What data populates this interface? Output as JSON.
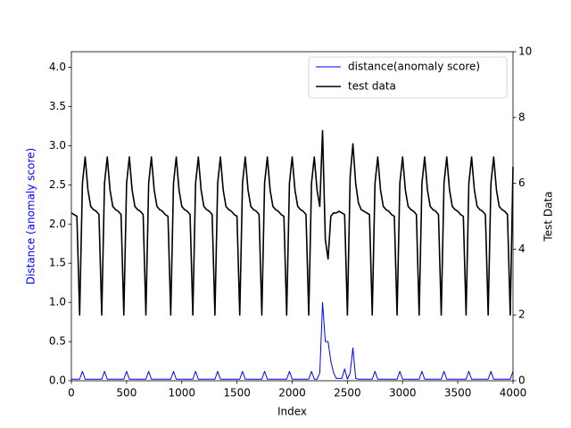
{
  "chart_data": {
    "type": "line",
    "xlabel": "Index",
    "ylabel": "Distance (anomaly score)",
    "y2label": "Test Data",
    "xlim": [
      0,
      4000
    ],
    "xticks": [
      0,
      500,
      1000,
      1500,
      2000,
      2500,
      3000,
      3500,
      4000
    ],
    "ylim": [
      0,
      4.2
    ],
    "yticks": [
      {
        "value": 0,
        "label": "0.0"
      },
      0.5,
      {
        "value": 1,
        "label": "1.0"
      },
      1.5,
      {
        "value": 2,
        "label": "2.0"
      },
      2.5,
      {
        "value": 3,
        "label": "3.0"
      },
      3.5,
      {
        "value": 4,
        "label": "4.0"
      }
    ],
    "y2lim": [
      0,
      10
    ],
    "y2ticks": [
      0,
      2,
      4,
      6,
      8,
      10
    ],
    "legend": "upper right",
    "x": [
      0,
      25,
      50,
      75,
      100,
      125,
      150,
      175,
      200,
      225,
      250,
      275,
      300,
      325,
      350,
      375,
      400,
      425,
      450,
      475,
      500,
      525,
      550,
      575,
      600,
      625,
      650,
      675,
      700,
      725,
      750,
      775,
      800,
      825,
      850,
      875,
      900,
      925,
      950,
      975,
      1000,
      1025,
      1050,
      1075,
      1100,
      1125,
      1150,
      1175,
      1200,
      1225,
      1250,
      1275,
      1300,
      1325,
      1350,
      1375,
      1400,
      1425,
      1450,
      1475,
      1500,
      1525,
      1550,
      1575,
      1600,
      1625,
      1650,
      1675,
      1700,
      1725,
      1750,
      1775,
      1800,
      1825,
      1850,
      1875,
      1900,
      1925,
      1950,
      1975,
      2000,
      2025,
      2050,
      2075,
      2100,
      2125,
      2150,
      2175,
      2200,
      2225,
      2250,
      2275,
      2300,
      2325,
      2350,
      2375,
      2400,
      2425,
      2450,
      2475,
      2500,
      2525,
      2550,
      2575,
      2600,
      2625,
      2650,
      2675,
      2700,
      2725,
      2750,
      2775,
      2800,
      2825,
      2850,
      2875,
      2900,
      2925,
      2950,
      2975,
      3000,
      3025,
      3050,
      3075,
      3100,
      3125,
      3150,
      3175,
      3200,
      3225,
      3250,
      3275,
      3300,
      3325,
      3350,
      3375,
      3400,
      3425,
      3450,
      3475,
      3500,
      3525,
      3550,
      3575,
      3600,
      3625,
      3650,
      3675,
      3700,
      3725,
      3750,
      3775,
      3800,
      3825,
      3850,
      3875,
      3900,
      3925,
      3950,
      3975,
      4000
    ],
    "series": [
      {
        "name": "distance(anomaly score)",
        "color": "#0000ff",
        "axis": "y",
        "width": 1,
        "values": [
          0.02,
          0.02,
          0.02,
          0.02,
          0.12,
          0.02,
          0.02,
          0.02,
          0.02,
          0.02,
          0.02,
          0.02,
          0.12,
          0.02,
          0.02,
          0.02,
          0.02,
          0.02,
          0.02,
          0.02,
          0.12,
          0.02,
          0.02,
          0.02,
          0.02,
          0.02,
          0.02,
          0.02,
          0.12,
          0.02,
          0.02,
          0.02,
          0.02,
          0.02,
          0.02,
          0.02,
          0.02,
          0.12,
          0.02,
          0.02,
          0.02,
          0.02,
          0.02,
          0.02,
          0.02,
          0.12,
          0.02,
          0.02,
          0.02,
          0.02,
          0.02,
          0.02,
          0.02,
          0.12,
          0.02,
          0.02,
          0.02,
          0.02,
          0.02,
          0.02,
          0.02,
          0.02,
          0.12,
          0.02,
          0.02,
          0.02,
          0.02,
          0.02,
          0.02,
          0.02,
          0.12,
          0.02,
          0.02,
          0.02,
          0.02,
          0.02,
          0.02,
          0.02,
          0.02,
          0.12,
          0.02,
          0.02,
          0.02,
          0.02,
          0.02,
          0.02,
          0.02,
          0.12,
          0.02,
          0.02,
          0.1,
          1.0,
          0.5,
          0.5,
          0.25,
          0.1,
          0.03,
          0.03,
          0.03,
          0.15,
          0.02,
          0.1,
          0.42,
          0.03,
          0.02,
          0.02,
          0.02,
          0.02,
          0.02,
          0.02,
          0.12,
          0.02,
          0.02,
          0.02,
          0.02,
          0.02,
          0.02,
          0.02,
          0.02,
          0.12,
          0.02,
          0.02,
          0.02,
          0.02,
          0.02,
          0.02,
          0.02,
          0.12,
          0.02,
          0.02,
          0.02,
          0.02,
          0.02,
          0.02,
          0.02,
          0.12,
          0.02,
          0.02,
          0.02,
          0.02,
          0.02,
          0.02,
          0.02,
          0.02,
          0.12,
          0.02,
          0.02,
          0.02,
          0.02,
          0.02,
          0.02,
          0.02,
          0.12,
          0.02,
          0.02,
          0.02,
          0.02,
          0.02,
          0.02,
          0.02,
          0.12
        ]
      },
      {
        "name": "test data",
        "color": "#000000",
        "axis": "y2",
        "width": 1.6,
        "values": [
          5.1,
          5.05,
          5.0,
          2.0,
          6.0,
          6.8,
          5.8,
          5.3,
          5.2,
          5.15,
          5.05,
          2.0,
          6.0,
          6.8,
          5.8,
          5.3,
          5.2,
          5.15,
          5.05,
          2.0,
          6.0,
          6.8,
          5.8,
          5.3,
          5.2,
          5.15,
          5.05,
          2.0,
          6.0,
          6.8,
          5.8,
          5.3,
          5.2,
          5.15,
          5.05,
          5.0,
          2.0,
          6.0,
          6.8,
          5.8,
          5.3,
          5.2,
          5.15,
          5.05,
          2.0,
          6.0,
          6.8,
          5.8,
          5.3,
          5.2,
          5.15,
          5.05,
          2.0,
          6.0,
          6.8,
          5.8,
          5.3,
          5.2,
          5.15,
          5.05,
          5.0,
          2.0,
          6.0,
          6.8,
          5.8,
          5.3,
          5.2,
          5.15,
          5.05,
          2.0,
          6.0,
          6.8,
          5.8,
          5.3,
          5.2,
          5.15,
          5.05,
          5.0,
          2.0,
          6.0,
          6.8,
          5.8,
          5.3,
          5.2,
          5.15,
          5.05,
          2.0,
          6.0,
          6.8,
          5.8,
          5.3,
          7.6,
          4.3,
          3.7,
          5.0,
          5.1,
          5.1,
          5.15,
          5.1,
          5.05,
          2.0,
          6.2,
          7.2,
          6.0,
          5.4,
          5.2,
          5.15,
          5.1,
          5.05,
          2.0,
          6.0,
          6.8,
          5.8,
          5.3,
          5.2,
          5.15,
          5.05,
          5.0,
          2.0,
          6.0,
          6.8,
          5.8,
          5.3,
          5.2,
          5.15,
          5.05,
          2.0,
          6.0,
          6.8,
          5.8,
          5.3,
          5.2,
          5.15,
          5.05,
          2.0,
          6.0,
          6.8,
          5.8,
          5.3,
          5.2,
          5.15,
          5.05,
          5.0,
          2.0,
          6.0,
          6.8,
          5.8,
          5.3,
          5.2,
          5.15,
          5.05,
          2.0,
          6.0,
          6.8,
          5.8,
          5.3,
          5.2,
          5.15,
          5.05,
          2.0,
          6.5
        ]
      }
    ]
  }
}
